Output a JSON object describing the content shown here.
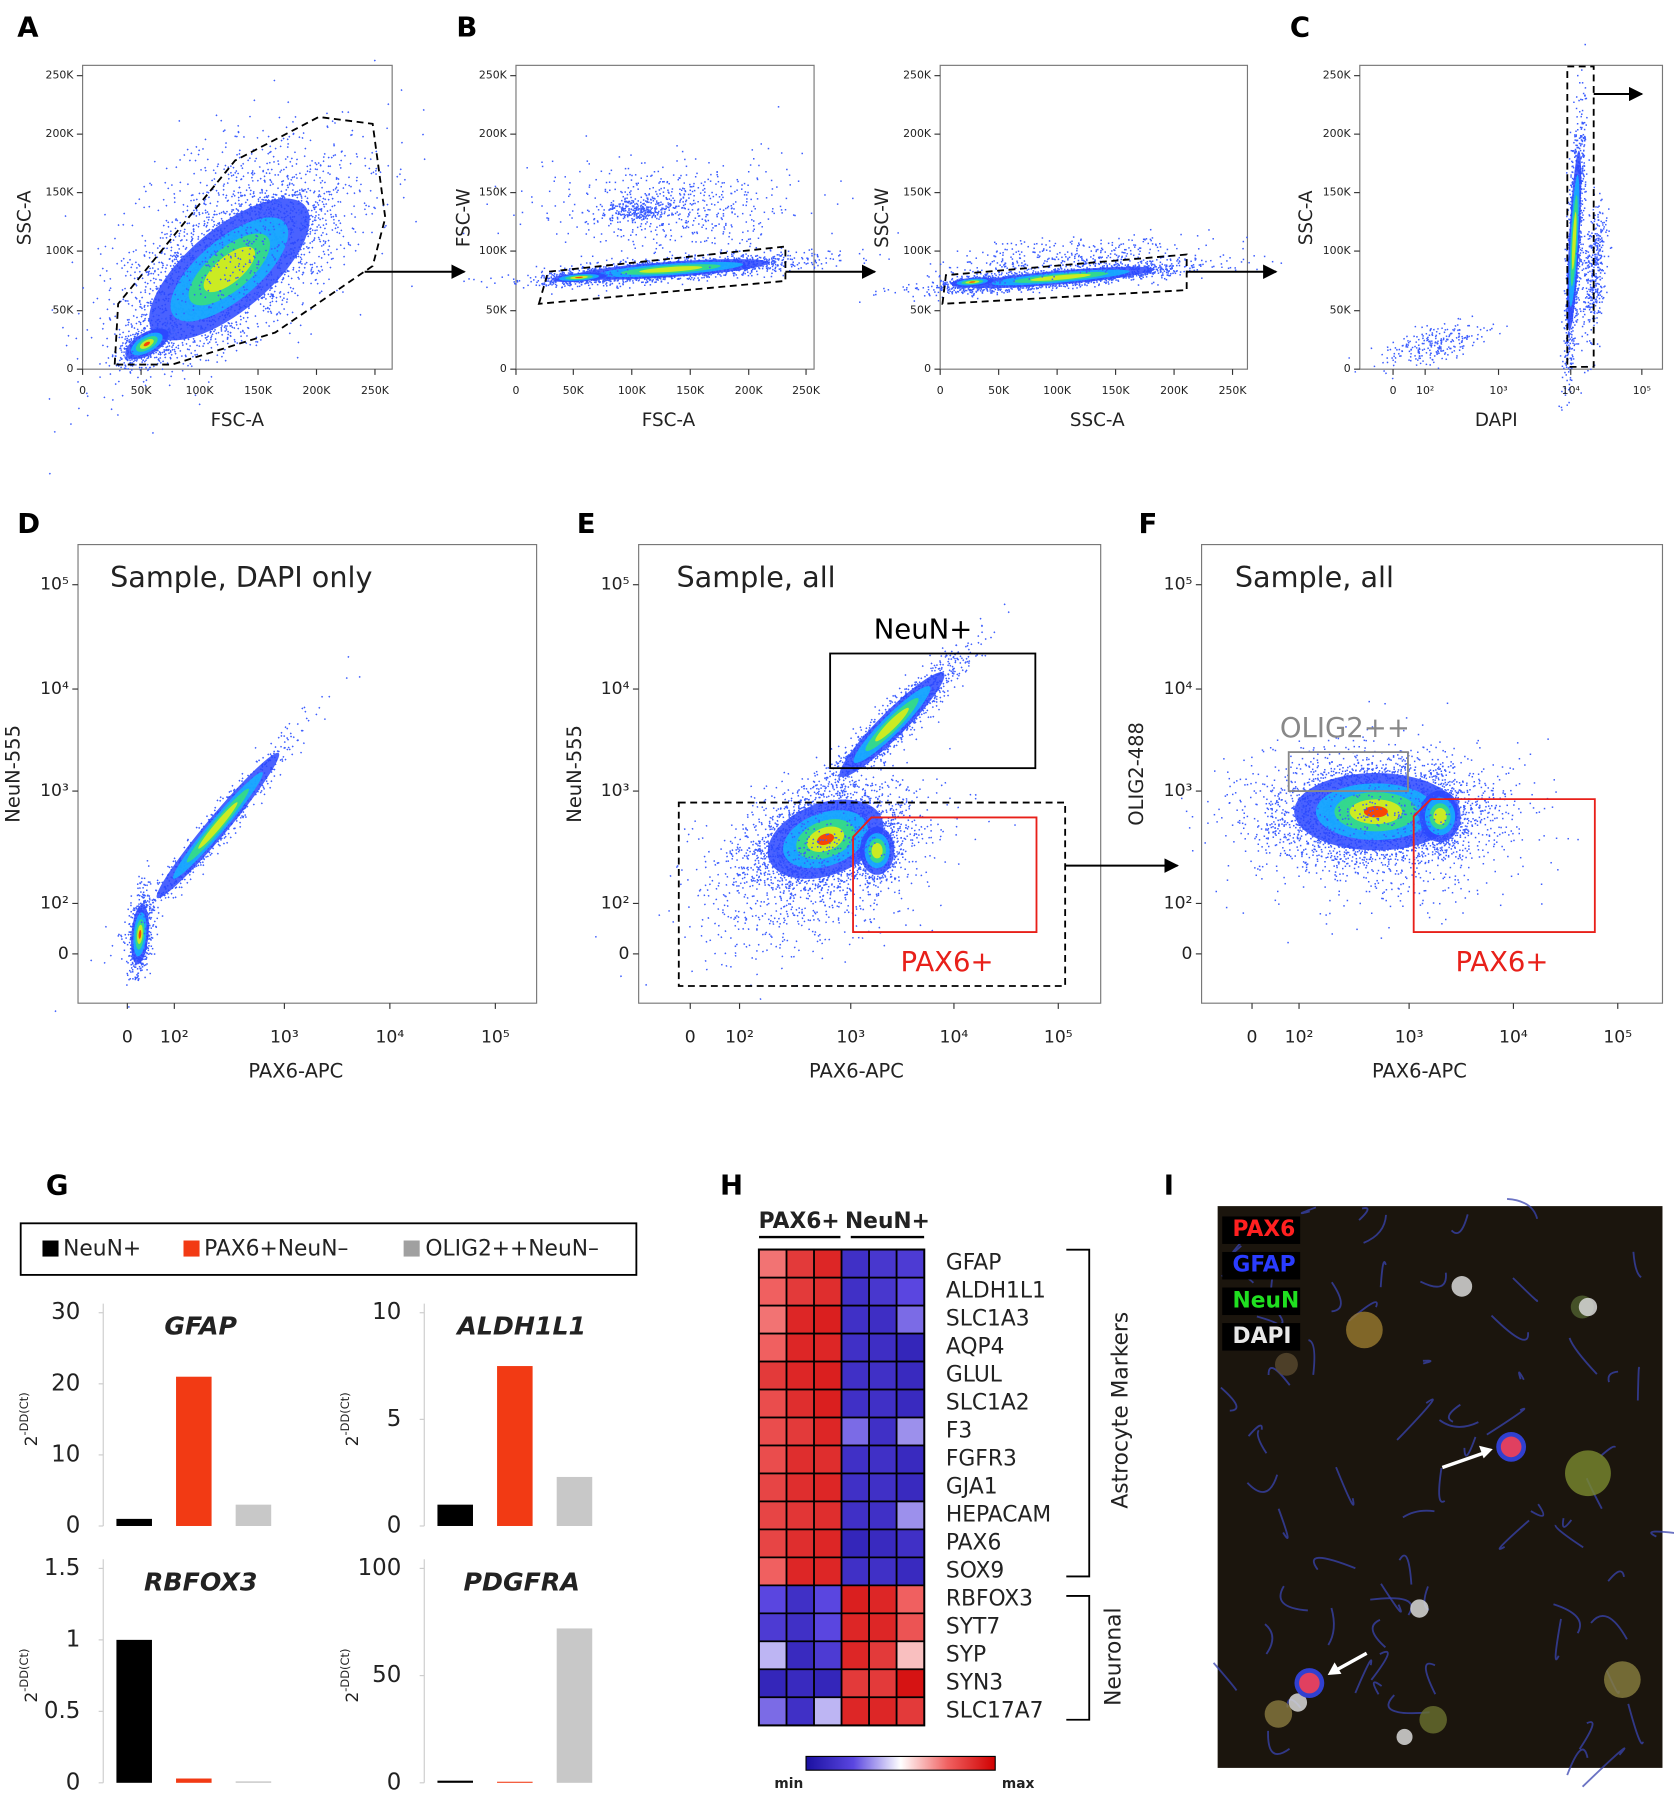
{
  "panel_labels": [
    "A",
    "B",
    "C",
    "D",
    "E",
    "F",
    "G",
    "H",
    "I"
  ],
  "flow_plots": [
    {
      "x_label": "FSC-A",
      "y_label": "SSC-A",
      "xticks": [
        "0",
        "50K",
        "100K",
        "150K",
        "200K",
        "250K"
      ],
      "yticks": [
        "0",
        "50K",
        "100K",
        "150K",
        "200K",
        "250K"
      ]
    },
    {
      "x_label": "FSC-A",
      "y_label": "FSC-W",
      "xticks": [
        "0",
        "50K",
        "100K",
        "150K",
        "200K",
        "250K"
      ],
      "yticks": [
        "0",
        "50K",
        "100K",
        "150K",
        "200K",
        "250K"
      ]
    },
    {
      "x_label": "SSC-A",
      "y_label": "SSC-W",
      "xticks": [
        "0",
        "50K",
        "100K",
        "150K",
        "200K",
        "250K"
      ],
      "yticks": [
        "0",
        "50K",
        "100K",
        "150K",
        "200K",
        "250K"
      ]
    },
    {
      "x_label": "DAPI",
      "y_label": "SSC-A",
      "xticks": [
        "0",
        "10²",
        "10³",
        "10⁴",
        "10⁵"
      ],
      "yticks": [
        "0",
        "50K",
        "100K",
        "150K",
        "200K",
        "250K"
      ]
    },
    {
      "title": "Sample, DAPI only",
      "x_label": "PAX6-APC",
      "y_label": "NeuN-555",
      "xticks": [
        "0",
        "10²",
        "10³",
        "10⁴",
        "10⁵"
      ],
      "yticks": [
        "0",
        "10²",
        "10³",
        "10⁴",
        "10⁵"
      ]
    },
    {
      "title": "Sample, all",
      "x_label": "PAX6-APC",
      "y_label": "NeuN-555",
      "xticks": [
        "0",
        "10²",
        "10³",
        "10⁴",
        "10⁵"
      ],
      "yticks": [
        "0",
        "10²",
        "10³",
        "10⁴",
        "10⁵"
      ],
      "gates": [
        "NeuN+",
        "PAX6+"
      ]
    },
    {
      "title": "Sample, all",
      "x_label": "PAX6-APC",
      "y_label": "OLIG2-488",
      "xticks": [
        "0",
        "10²",
        "10³",
        "10⁴",
        "10⁵"
      ],
      "yticks": [
        "0",
        "10²",
        "10³",
        "10⁴",
        "10⁵"
      ],
      "gates": [
        "OLIG2++",
        "PAX6+"
      ]
    }
  ],
  "legend": [
    {
      "name": "NeuN+",
      "color": "#000000"
    },
    {
      "name": "PAX6+NeuN–",
      "color": "#f23a14"
    },
    {
      "name": "OLIG2++NeuN–",
      "color": "#a0a0a0"
    }
  ],
  "chart_data": [
    {
      "type": "bar",
      "title": "GFAP",
      "y_label": {
        "base": "2",
        "sup": "-DD(Ct)"
      },
      "categories": [
        null,
        null,
        null
      ],
      "values": [
        1,
        21,
        3
      ],
      "colors": [
        "#000000",
        "#f23a14",
        "#c8c8c8"
      ],
      "ylim": [
        0,
        30
      ],
      "yticks": [
        0,
        10,
        20,
        30
      ]
    },
    {
      "type": "bar",
      "title": "ALDH1L1",
      "y_label": {
        "base": "2",
        "sup": "-DD(Ct)"
      },
      "categories": [
        null,
        null,
        null
      ],
      "values": [
        1,
        7.5,
        2.3
      ],
      "colors": [
        "#000000",
        "#f23a14",
        "#c8c8c8"
      ],
      "ylim": [
        0,
        10
      ],
      "yticks": [
        0,
        5,
        10
      ]
    },
    {
      "type": "bar",
      "title": "RBFOX3",
      "y_label": {
        "base": "2",
        "sup": "-DD(Ct)"
      },
      "categories": [
        null,
        null,
        null
      ],
      "values": [
        1,
        0.03,
        0.01
      ],
      "colors": [
        "#000000",
        "#f23a14",
        "#c8c8c8"
      ],
      "ylim": [
        0,
        1.5
      ],
      "yticks": [
        0,
        0.5,
        1,
        1.5
      ]
    },
    {
      "type": "bar",
      "title": "PDGFRA",
      "y_label": {
        "base": "2",
        "sup": "-DD(Ct)"
      },
      "categories": [
        null,
        null,
        null
      ],
      "values": [
        1,
        0.5,
        72
      ],
      "colors": [
        "#000000",
        "#f23a14",
        "#c8c8c8"
      ],
      "ylim": [
        0,
        100
      ],
      "yticks": [
        0,
        50,
        100
      ]
    }
  ],
  "heatmap": {
    "groups": [
      "PAX6+",
      "NeuN+"
    ],
    "genes": [
      "GFAP",
      "ALDH1L1",
      "SLC1A3",
      "AQP4",
      "GLUL",
      "SLC1A2",
      "F3",
      "FGFR3",
      "GJA1",
      "HEPACAM",
      "PAX6",
      "SOX9",
      "RBFOX3",
      "SYT7",
      "SYP",
      "SYN3",
      "SLC17A7"
    ],
    "values": [
      [
        0.72,
        0.85,
        0.9,
        0.15,
        0.18,
        0.2
      ],
      [
        0.75,
        0.85,
        0.88,
        0.15,
        0.18,
        0.25
      ],
      [
        0.72,
        0.9,
        0.92,
        0.15,
        0.14,
        0.3
      ],
      [
        0.75,
        0.9,
        0.9,
        0.15,
        0.14,
        0.1
      ],
      [
        0.85,
        0.9,
        0.92,
        0.15,
        0.15,
        0.12
      ],
      [
        0.8,
        0.88,
        0.92,
        0.15,
        0.15,
        0.12
      ],
      [
        0.8,
        0.85,
        0.9,
        0.3,
        0.15,
        0.35
      ],
      [
        0.8,
        0.88,
        0.88,
        0.15,
        0.15,
        0.12
      ],
      [
        0.82,
        0.88,
        0.9,
        0.15,
        0.15,
        0.12
      ],
      [
        0.82,
        0.86,
        0.88,
        0.15,
        0.15,
        0.35
      ],
      [
        0.82,
        0.88,
        0.9,
        0.1,
        0.12,
        0.15
      ],
      [
        0.75,
        0.9,
        0.9,
        0.15,
        0.15,
        0.12
      ],
      [
        0.25,
        0.15,
        0.25,
        0.92,
        0.9,
        0.75
      ],
      [
        0.2,
        0.15,
        0.25,
        0.9,
        0.9,
        0.78
      ],
      [
        0.4,
        0.12,
        0.2,
        0.9,
        0.85,
        0.6
      ],
      [
        0.1,
        0.12,
        0.1,
        0.85,
        0.85,
        0.95
      ],
      [
        0.3,
        0.15,
        0.4,
        0.9,
        0.9,
        0.85
      ]
    ],
    "brackets": [
      "Astrocyte Markers",
      "Neuronal"
    ],
    "colorbar": {
      "min": "min",
      "max": "max"
    }
  },
  "image": {
    "channels": [
      {
        "name": "PAX6",
        "color": "#ff2020"
      },
      {
        "name": "GFAP",
        "color": "#2a3cff"
      },
      {
        "name": "NeuN",
        "color": "#20e020"
      },
      {
        "name": "DAPI",
        "color": "#e8e8e8"
      }
    ]
  }
}
